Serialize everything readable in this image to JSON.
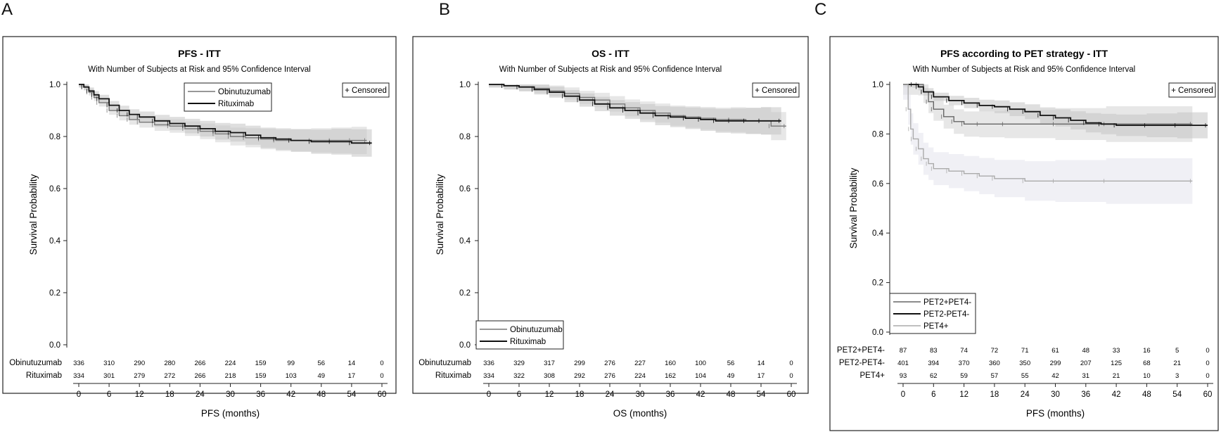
{
  "panel_letters": [
    "A",
    "B",
    "C"
  ],
  "censor_note": "+ Censored",
  "chart_data": [
    {
      "panel": "A",
      "type": "line",
      "title": "PFS - ITT",
      "subtitle": "With Number of Subjects at Risk and 95% Confidence Interval",
      "xlabel": "PFS (months)",
      "ylabel": "Survival Probability",
      "xlim": [
        0,
        60
      ],
      "ylim": [
        0,
        1
      ],
      "x_ticks": [
        0,
        6,
        12,
        18,
        24,
        30,
        36,
        42,
        48,
        54,
        60
      ],
      "y_ticks": [
        "0.0",
        "0.2",
        "0.4",
        "0.6",
        "0.8",
        "1.0"
      ],
      "legend_position": "top-center",
      "series": [
        {
          "name": "Obinutuzumab",
          "color": "#777777",
          "x": [
            0,
            1,
            2,
            3,
            4,
            6,
            8,
            10,
            12,
            15,
            18,
            21,
            24,
            27,
            30,
            33,
            36,
            39,
            42,
            46,
            50,
            54,
            57
          ],
          "y": [
            1.0,
            0.99,
            0.97,
            0.95,
            0.93,
            0.9,
            0.88,
            0.865,
            0.855,
            0.845,
            0.84,
            0.83,
            0.82,
            0.81,
            0.8,
            0.795,
            0.79,
            0.785,
            0.785,
            0.785,
            0.785,
            0.785,
            0.785
          ]
        },
        {
          "name": "Rituximab",
          "color": "#111111",
          "x": [
            0,
            1,
            2,
            3,
            4,
            6,
            8,
            10,
            12,
            15,
            18,
            21,
            24,
            27,
            30,
            33,
            36,
            39,
            42,
            46,
            50,
            54,
            58
          ],
          "y": [
            1.0,
            0.99,
            0.975,
            0.96,
            0.945,
            0.92,
            0.9,
            0.885,
            0.875,
            0.86,
            0.85,
            0.84,
            0.83,
            0.82,
            0.815,
            0.805,
            0.795,
            0.79,
            0.785,
            0.78,
            0.78,
            0.775,
            0.775
          ]
        }
      ],
      "risk_table": {
        "rows": [
          {
            "label": "Obinutuzumab",
            "values": [
              "336",
              "310",
              "290",
              "280",
              "266",
              "224",
              "159",
              "99",
              "56",
              "14",
              "0"
            ]
          },
          {
            "label": "Rituximab",
            "values": [
              "334",
              "301",
              "279",
              "272",
              "266",
              "218",
              "159",
              "103",
              "49",
              "17",
              "0"
            ]
          }
        ]
      }
    },
    {
      "panel": "B",
      "type": "line",
      "title": "OS - ITT",
      "subtitle": "With Number of Subjects at Risk and 95% Confidence Interval",
      "xlabel": "OS (months)",
      "ylabel": "Survival Probability",
      "xlim": [
        0,
        60
      ],
      "ylim": [
        0,
        1
      ],
      "x_ticks": [
        0,
        6,
        12,
        18,
        24,
        30,
        36,
        42,
        48,
        54,
        60
      ],
      "y_ticks": [
        "0.0",
        "0.2",
        "0.4",
        "0.6",
        "0.8",
        "1.0"
      ],
      "legend_position": "bottom-left",
      "series": [
        {
          "name": "Obinutuzumab",
          "color": "#777777",
          "x": [
            0,
            3,
            6,
            9,
            12,
            15,
            18,
            21,
            24,
            27,
            30,
            33,
            36,
            39,
            42,
            45,
            48,
            51,
            54,
            56,
            59
          ],
          "y": [
            1.0,
            0.995,
            0.99,
            0.985,
            0.975,
            0.965,
            0.95,
            0.94,
            0.925,
            0.91,
            0.9,
            0.89,
            0.88,
            0.875,
            0.87,
            0.865,
            0.865,
            0.86,
            0.86,
            0.84,
            0.84
          ]
        },
        {
          "name": "Rituximab",
          "color": "#111111",
          "x": [
            0,
            3,
            6,
            9,
            12,
            15,
            18,
            21,
            24,
            27,
            30,
            33,
            36,
            39,
            42,
            45,
            48,
            51,
            54,
            58
          ],
          "y": [
            1.0,
            0.995,
            0.99,
            0.98,
            0.97,
            0.955,
            0.94,
            0.925,
            0.91,
            0.9,
            0.89,
            0.88,
            0.875,
            0.87,
            0.865,
            0.86,
            0.86,
            0.86,
            0.86,
            0.86
          ]
        }
      ],
      "risk_table": {
        "rows": [
          {
            "label": "Obinutuzumab",
            "values": [
              "336",
              "329",
              "317",
              "299",
              "276",
              "227",
              "160",
              "100",
              "56",
              "14",
              "0"
            ]
          },
          {
            "label": "Rituximab",
            "values": [
              "334",
              "322",
              "308",
              "292",
              "276",
              "224",
              "162",
              "104",
              "49",
              "17",
              "0"
            ]
          }
        ]
      }
    },
    {
      "panel": "C",
      "type": "line",
      "title": "PFS according to PET strategy - ITT",
      "subtitle": "With Number of Subjects at Risk and 95% Confidence Interval",
      "xlabel": "PFS (months)",
      "ylabel": "Survival Probability",
      "xlim": [
        0,
        60
      ],
      "ylim": [
        0,
        1
      ],
      "x_ticks": [
        0,
        6,
        12,
        18,
        24,
        30,
        36,
        42,
        48,
        54,
        60
      ],
      "y_ticks": [
        "0.0",
        "0.2",
        "0.4",
        "0.6",
        "0.8",
        "1.0"
      ],
      "legend_position": "bottom-left",
      "series": [
        {
          "name": "PET2+PET4-",
          "color": "#666666",
          "x": [
            0,
            3,
            4,
            5,
            6,
            8,
            10,
            12,
            15,
            20,
            30,
            40,
            57
          ],
          "y": [
            1.0,
            1.0,
            0.97,
            0.93,
            0.9,
            0.87,
            0.85,
            0.84,
            0.84,
            0.84,
            0.84,
            0.84,
            0.84
          ]
        },
        {
          "name": "PET2-PET4-",
          "color": "#111111",
          "x": [
            0,
            2,
            3,
            4,
            6,
            9,
            12,
            15,
            18,
            21,
            24,
            27,
            30,
            33,
            36,
            39,
            42,
            48,
            54,
            60
          ],
          "y": [
            1.0,
            1.0,
            0.99,
            0.97,
            0.95,
            0.935,
            0.925,
            0.915,
            0.91,
            0.9,
            0.89,
            0.875,
            0.865,
            0.855,
            0.845,
            0.84,
            0.835,
            0.835,
            0.835,
            0.835
          ]
        },
        {
          "name": "PET4+",
          "color": "#aaaaaa",
          "x": [
            0,
            1,
            1.5,
            2,
            3,
            4,
            5,
            6,
            9,
            12,
            15,
            18,
            24,
            30,
            40,
            57
          ],
          "y": [
            1.0,
            0.9,
            0.82,
            0.78,
            0.74,
            0.7,
            0.68,
            0.66,
            0.65,
            0.64,
            0.63,
            0.62,
            0.61,
            0.61,
            0.61,
            0.61
          ]
        }
      ],
      "risk_table": {
        "rows": [
          {
            "label": "PET2+PET4-",
            "values": [
              "87",
              "83",
              "74",
              "72",
              "71",
              "61",
              "48",
              "33",
              "16",
              "5",
              "0"
            ]
          },
          {
            "label": "PET2-PET4-",
            "values": [
              "401",
              "394",
              "370",
              "360",
              "350",
              "299",
              "207",
              "125",
              "68",
              "21",
              "0"
            ]
          },
          {
            "label": "PET4+",
            "values": [
              "93",
              "62",
              "59",
              "57",
              "55",
              "42",
              "31",
              "21",
              "10",
              "3",
              "0"
            ]
          }
        ]
      }
    }
  ]
}
